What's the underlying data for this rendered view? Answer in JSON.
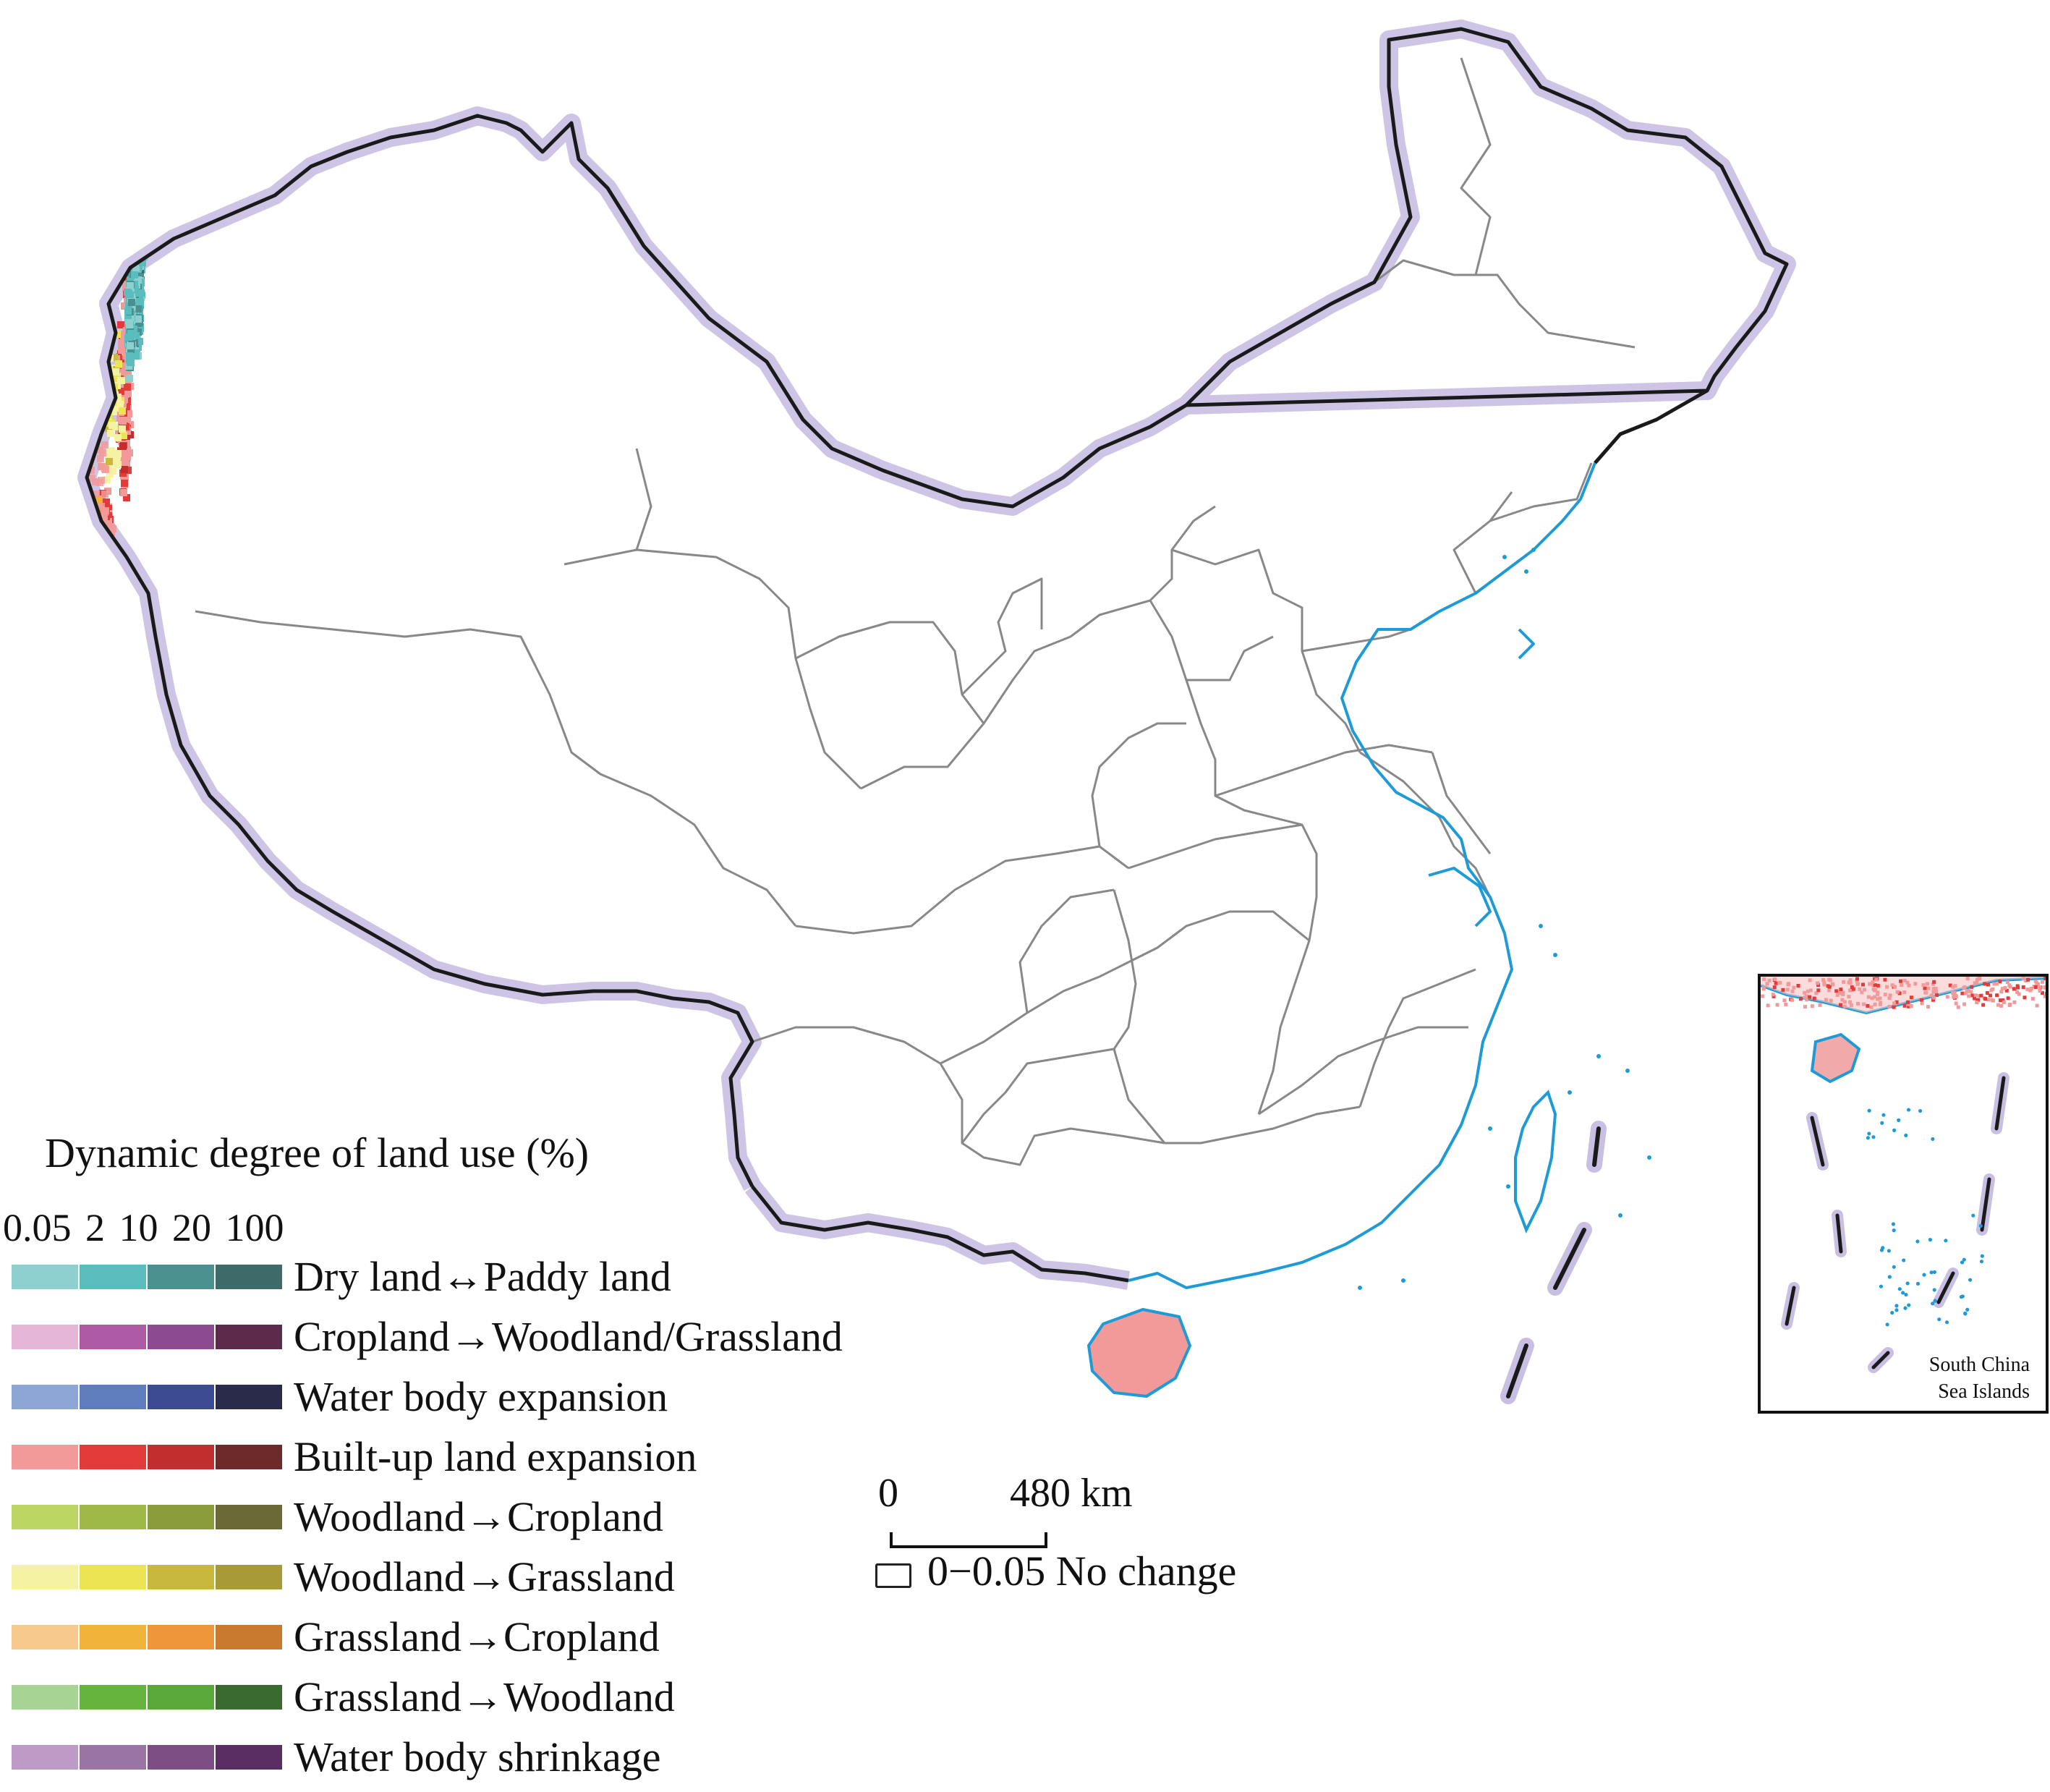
{
  "legend": {
    "title": "Dynamic degree of land use (%)",
    "scale_ticks": [
      "0.05",
      "2",
      "10",
      "20",
      "100"
    ],
    "classes": [
      {
        "label": "Dry land↔Paddy land",
        "colors": [
          "#8ecfcf",
          "#5bbcbd",
          "#4a908f",
          "#3e6a6a"
        ]
      },
      {
        "label": "Cropland→Woodland/Grassland",
        "colors": [
          "#e6b6d8",
          "#ad5aa3",
          "#8c4a91",
          "#5c2a4a"
        ]
      },
      {
        "label": "Water body expansion",
        "colors": [
          "#8ea6d6",
          "#5f7dbd",
          "#3c4a92",
          "#2a2a4a"
        ]
      },
      {
        "label": "Built-up land expansion",
        "colors": [
          "#f29a9a",
          "#e33a3a",
          "#c22e2e",
          "#6e2a2a"
        ]
      },
      {
        "label": "Woodland→Cropland",
        "colors": [
          "#bcd664",
          "#9dba48",
          "#8a9c3c",
          "#6b6a36"
        ]
      },
      {
        "label": "Woodland→Grassland",
        "colors": [
          "#f6f2a4",
          "#ece452",
          "#c8b83e",
          "#a89a36"
        ]
      },
      {
        "label": "Grassland→Cropland",
        "colors": [
          "#f7c98c",
          "#f0b43a",
          "#f0963a",
          "#c97a2e"
        ]
      },
      {
        "label": "Grassland→Woodland",
        "colors": [
          "#a7d394",
          "#66b43e",
          "#5aa83a",
          "#3a6a2e"
        ]
      },
      {
        "label": "Water body shrinkage",
        "colors": [
          "#bd9bc6",
          "#9a74a4",
          "#7c4e83",
          "#5a2e62"
        ]
      }
    ],
    "no_change_label": "0−0.05 No change"
  },
  "scalebar": {
    "start_label": "0",
    "end_label": "480 km"
  },
  "inset": {
    "label_line1": "South China",
    "label_line2": "Sea Islands"
  },
  "colors": {
    "border_halo": "#c9bfe3",
    "national_border": "#1a1a1a",
    "province_border": "#888888",
    "coastline": "#1e9bd7",
    "island_dot": "#1e9bd7"
  }
}
